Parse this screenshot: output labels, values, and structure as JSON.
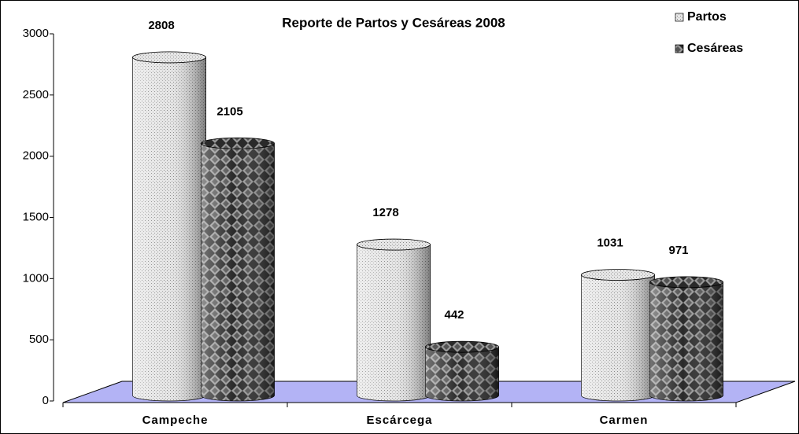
{
  "chart_data": {
    "type": "bar3d",
    "title": "Reporte de Partos y Cesáreas  2008",
    "categories": [
      "Campeche",
      "Escárcega",
      "Carmen"
    ],
    "series": [
      {
        "name": "Partos",
        "color": "#d9d9d9",
        "values": [
          2808,
          1278,
          1031
        ]
      },
      {
        "name": "Cesáreas",
        "color": "#404040",
        "values": [
          2105,
          442,
          971
        ]
      }
    ],
    "ylim": [
      0,
      3000
    ],
    "yticks": [
      0,
      500,
      1000,
      1500,
      2000,
      2500,
      3000
    ],
    "grid": false,
    "legend": "top-right",
    "floor_color": "#b3b3f5"
  }
}
